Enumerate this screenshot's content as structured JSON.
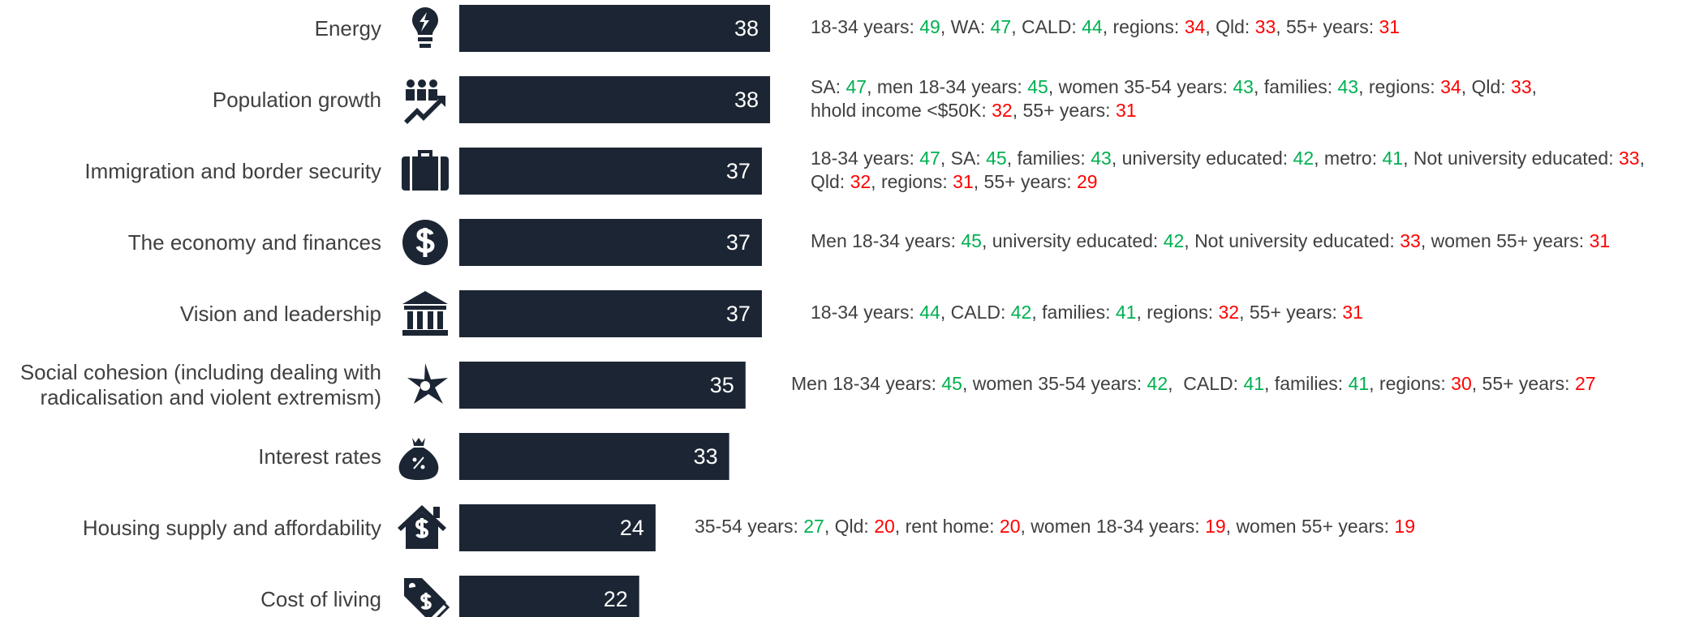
{
  "chart_data": {
    "type": "bar",
    "orientation": "horizontal",
    "color": "#1c2533",
    "categories": [
      "Energy",
      "Population growth",
      "Immigration and border security",
      "The economy and finances",
      "Vision and leadership",
      "Social cohesion (including dealing with\nradicalisation and violent extremism)",
      "Interest rates",
      "Housing supply and affordability",
      "Cost of living"
    ],
    "values": [
      38,
      38,
      37,
      37,
      37,
      35,
      33,
      24,
      22
    ],
    "annotations": [
      [
        [
          {
            "text": "18-34 years: ",
            "value": 49,
            "color": "#00b050"
          },
          {
            "text": ", WA: ",
            "value": 47,
            "color": "#00b050"
          },
          {
            "text": ", CALD: ",
            "value": 44,
            "color": "#00b050"
          },
          {
            "text": ", regions: ",
            "value": 34,
            "color": "#ff0000"
          },
          {
            "text": ", Qld: ",
            "value": 33,
            "color": "#ff0000"
          },
          {
            "text": ", 55+ years: ",
            "value": 31,
            "color": "#ff0000"
          }
        ]
      ],
      [
        [
          {
            "text": "SA: ",
            "value": 47,
            "color": "#00b050"
          },
          {
            "text": ", men 18-34 years: ",
            "value": 45,
            "color": "#00b050"
          },
          {
            "text": ", women 35-54 years: ",
            "value": 43,
            "color": "#00b050"
          },
          {
            "text": ", families: ",
            "value": 43,
            "color": "#00b050"
          },
          {
            "text": ", regions: ",
            "value": 34,
            "color": "#ff0000"
          },
          {
            "text": ", Qld: ",
            "value": 33,
            "color": "#ff0000"
          },
          {
            "text": ",",
            "value": null,
            "color": null
          }
        ],
        [
          {
            "text": "hhold income <$50K: ",
            "value": 32,
            "color": "#ff0000"
          },
          {
            "text": ", 55+ years: ",
            "value": 31,
            "color": "#ff0000"
          }
        ]
      ],
      [
        [
          {
            "text": "18-34 years: ",
            "value": 47,
            "color": "#00b050"
          },
          {
            "text": ", SA: ",
            "value": 45,
            "color": "#00b050"
          },
          {
            "text": ", families: ",
            "value": 43,
            "color": "#00b050"
          },
          {
            "text": ", university educated: ",
            "value": 42,
            "color": "#00b050"
          },
          {
            "text": ", metro: ",
            "value": 41,
            "color": "#00b050"
          },
          {
            "text": ", Not university educated: ",
            "value": 33,
            "color": "#ff0000"
          },
          {
            "text": ",",
            "value": null,
            "color": null
          }
        ],
        [
          {
            "text": "Qld: ",
            "value": 32,
            "color": "#ff0000"
          },
          {
            "text": ", regions: ",
            "value": 31,
            "color": "#ff0000"
          },
          {
            "text": ", 55+ years: ",
            "value": 29,
            "color": "#ff0000"
          }
        ]
      ],
      [
        [
          {
            "text": "Men 18-34 years: ",
            "value": 45,
            "color": "#00b050"
          },
          {
            "text": ", university educated: ",
            "value": 42,
            "color": "#00b050"
          },
          {
            "text": ", Not university educated: ",
            "value": 33,
            "color": "#ff0000"
          },
          {
            "text": ", women 55+ years: ",
            "value": 31,
            "color": "#ff0000"
          }
        ]
      ],
      [
        [
          {
            "text": "18-34 years: ",
            "value": 44,
            "color": "#00b050"
          },
          {
            "text": ", CALD: ",
            "value": 42,
            "color": "#00b050"
          },
          {
            "text": ", families: ",
            "value": 41,
            "color": "#00b050"
          },
          {
            "text": ", regions: ",
            "value": 32,
            "color": "#ff0000"
          },
          {
            "text": ", 55+ years: ",
            "value": 31,
            "color": "#ff0000"
          }
        ]
      ],
      [
        [
          {
            "text": "Men 18-34 years: ",
            "value": 45,
            "color": "#00b050"
          },
          {
            "text": ", women 35-54 years: ",
            "value": 42,
            "color": "#00b050"
          },
          {
            "text": ",  CALD: ",
            "value": 41,
            "color": "#00b050"
          },
          {
            "text": ", families: ",
            "value": 41,
            "color": "#00b050"
          },
          {
            "text": ", regions: ",
            "value": 30,
            "color": "#ff0000"
          },
          {
            "text": ", 55+ years: ",
            "value": 27,
            "color": "#ff0000"
          }
        ]
      ],
      [],
      [
        [
          {
            "text": "35-54 years: ",
            "value": 27,
            "color": "#00b050"
          },
          {
            "text": ", Qld: ",
            "value": 20,
            "color": "#ff0000"
          },
          {
            "text": ", rent home: ",
            "value": 20,
            "color": "#ff0000"
          },
          {
            "text": ", women 18-34 years: ",
            "value": 19,
            "color": "#ff0000"
          },
          {
            "text": ", women 55+ years: ",
            "value": 19,
            "color": "#ff0000"
          }
        ]
      ],
      []
    ]
  }
}
